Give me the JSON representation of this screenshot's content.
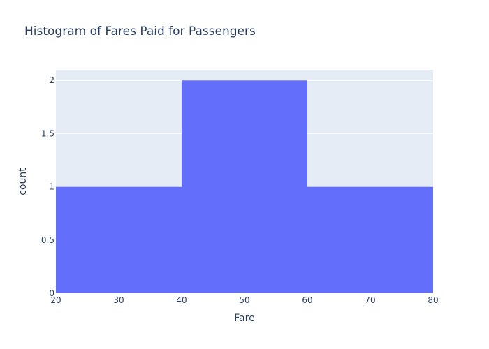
{
  "chart_data": {
    "type": "bar",
    "title": "Histogram of Fares Paid for Passengers",
    "xlabel": "Fare",
    "ylabel": "count",
    "bins": [
      {
        "start": 20,
        "end": 40,
        "count": 1
      },
      {
        "start": 40,
        "end": 60,
        "count": 2
      },
      {
        "start": 60,
        "end": 80,
        "count": 1
      }
    ],
    "xlim": [
      20,
      80
    ],
    "ylim": [
      0,
      2.1
    ],
    "xticks": [
      20,
      30,
      40,
      50,
      60,
      70,
      80
    ],
    "yticks": [
      0,
      0.5,
      1,
      1.5,
      2
    ],
    "ytick_labels": [
      "0",
      "0.5",
      "1",
      "1.5",
      "2"
    ],
    "grid": true
  },
  "colors": {
    "bar": "#636efa",
    "plot_background": "#e5ecf6",
    "gridline": "#ffffff",
    "text": "#2a3f5f"
  }
}
